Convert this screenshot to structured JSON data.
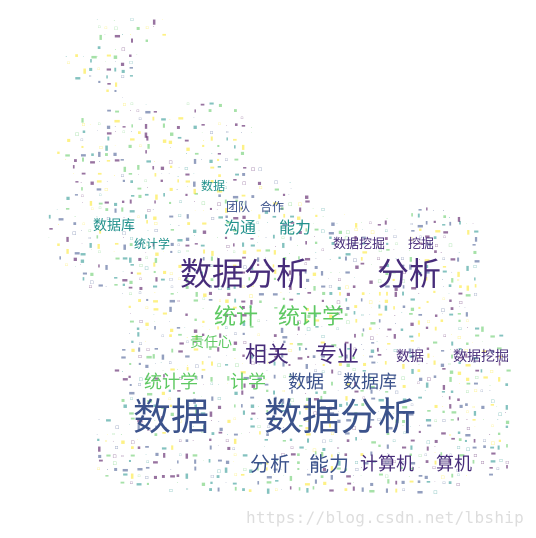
{
  "cloud": {
    "palette": [
      "#440154",
      "#3b528b",
      "#21918c",
      "#5ec962",
      "#fde725"
    ],
    "words": [
      {
        "text": "数据分析",
        "color": "#472c7a",
        "weight": 5
      },
      {
        "text": "分析",
        "color": "#472c7a",
        "weight": 4
      },
      {
        "text": "数据",
        "color": "#3b528b",
        "weight": 5
      },
      {
        "text": "数据分析",
        "color": "#3b528b",
        "weight": 5
      },
      {
        "text": "统计",
        "color": "#5ec962",
        "weight": 3
      },
      {
        "text": "统计学",
        "color": "#5ec962",
        "weight": 3
      },
      {
        "text": "相关",
        "color": "#472c7a",
        "weight": 3
      },
      {
        "text": "专业",
        "color": "#472c7a",
        "weight": 3
      },
      {
        "text": "统计学",
        "color": "#5ec962",
        "weight": 2
      },
      {
        "text": "计学",
        "color": "#5ec962",
        "weight": 2
      },
      {
        "text": "数据",
        "color": "#3b528b",
        "weight": 2
      },
      {
        "text": "数据库",
        "color": "#3b528b",
        "weight": 2
      },
      {
        "text": "分析",
        "color": "#3b528b",
        "weight": 3
      },
      {
        "text": "能力",
        "color": "#3b528b",
        "weight": 3
      },
      {
        "text": "计算机",
        "color": "#472c7a",
        "weight": 3
      },
      {
        "text": "算机",
        "color": "#472c7a",
        "weight": 3
      },
      {
        "text": "数据库",
        "color": "#21918c",
        "weight": 2
      },
      {
        "text": "沟通",
        "color": "#21918c",
        "weight": 2
      },
      {
        "text": "能力",
        "color": "#21918c",
        "weight": 2
      },
      {
        "text": "数据挖掘",
        "color": "#472c7a",
        "weight": 1
      },
      {
        "text": "数据挖掘",
        "color": "#472c7a",
        "weight": 1
      },
      {
        "text": "挖掘",
        "color": "#472c7a",
        "weight": 1
      },
      {
        "text": "数据",
        "color": "#472c7a",
        "weight": 1
      },
      {
        "text": "责任心",
        "color": "#5ec962",
        "weight": 1
      },
      {
        "text": "统计学",
        "color": "#21918c",
        "weight": 1
      },
      {
        "text": "数据",
        "color": "#21918c",
        "weight": 1
      },
      {
        "text": "团队",
        "color": "#3b528b",
        "weight": 1
      },
      {
        "text": "合作",
        "color": "#3b528b",
        "weight": 1
      }
    ]
  },
  "watermark": "https://blog.csdn.net/lbship"
}
